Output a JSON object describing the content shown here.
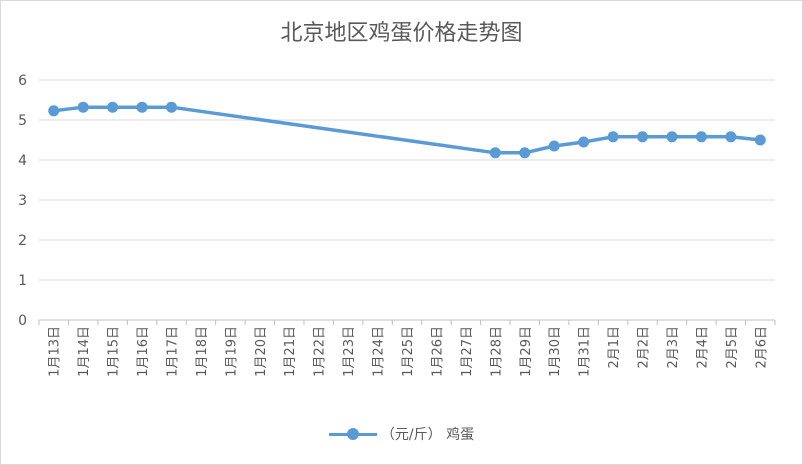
{
  "chart_data": {
    "type": "line",
    "title": "北京地区鸡蛋价格走势图",
    "categories": [
      "1月13日",
      "1月14日",
      "1月15日",
      "1月16日",
      "1月17日",
      "1月18日",
      "1月19日",
      "1月20日",
      "1月21日",
      "1月22日",
      "1月23日",
      "1月24日",
      "1月25日",
      "1月26日",
      "1月27日",
      "1月28日",
      "1月29日",
      "1月30日",
      "1月31日",
      "2月1日",
      "2月2日",
      "2月3日",
      "2月4日",
      "2月5日",
      "2月6日"
    ],
    "x_marked": [
      "1月13日",
      "1月14日",
      "1月15日",
      "1月16日",
      "1月17日",
      "1月28日",
      "1月29日",
      "1月30日",
      "1月31日",
      "2月1日",
      "2月2日",
      "2月3日",
      "2月4日",
      "2月5日",
      "2月6日"
    ],
    "series": [
      {
        "name": "（元/斤） 鸡蛋",
        "color": "#5b9bd5",
        "points": [
          {
            "x": "1月13日",
            "y": 5.23
          },
          {
            "x": "1月14日",
            "y": 5.32
          },
          {
            "x": "1月15日",
            "y": 5.32
          },
          {
            "x": "1月16日",
            "y": 5.32
          },
          {
            "x": "1月17日",
            "y": 5.32
          },
          {
            "x": "1月28日",
            "y": 4.18
          },
          {
            "x": "1月29日",
            "y": 4.18
          },
          {
            "x": "1月30日",
            "y": 4.35
          },
          {
            "x": "1月31日",
            "y": 4.45
          },
          {
            "x": "2月1日",
            "y": 4.58
          },
          {
            "x": "2月2日",
            "y": 4.58
          },
          {
            "x": "2月3日",
            "y": 4.58
          },
          {
            "x": "2月4日",
            "y": 4.58
          },
          {
            "x": "2月5日",
            "y": 4.58
          },
          {
            "x": "2月6日",
            "y": 4.5
          }
        ]
      }
    ],
    "ylim": [
      0,
      6
    ],
    "yticks": [
      0,
      1,
      2,
      3,
      4,
      5,
      6
    ],
    "grid": true,
    "legend": "bottom",
    "xlabel": "",
    "ylabel": ""
  },
  "legend_label": "（元/斤） 鸡蛋"
}
